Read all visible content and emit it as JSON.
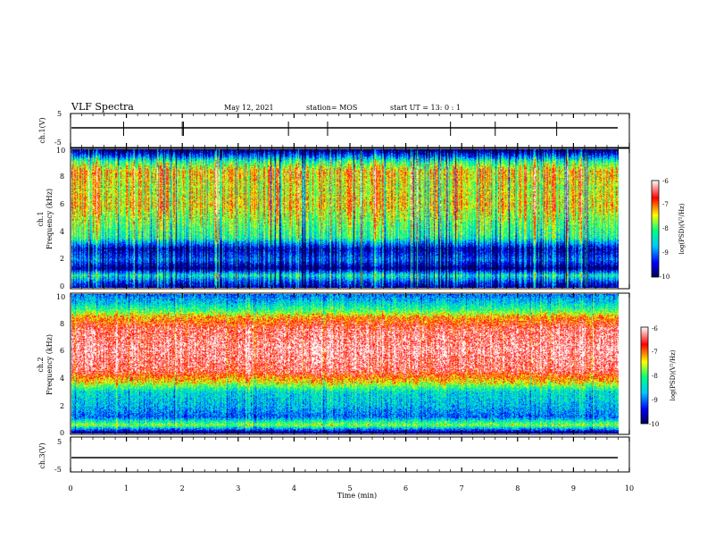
{
  "header": {
    "title": "VLF Spectra",
    "date": "May 12, 2021",
    "station": "station= MOS",
    "start": "start  UT  =   13: 0   : 1"
  },
  "chart_data": [
    {
      "type": "line",
      "panel": "ch1-waveform",
      "ylabel": "ch.1(V)",
      "ylim": [
        -5,
        5
      ],
      "ytick_labels": [
        "5",
        "-5"
      ],
      "series": [
        {
          "x": [
            0,
            9.8
          ],
          "values": [
            0,
            0
          ]
        }
      ]
    },
    {
      "type": "heatmap",
      "panel": "ch1-spectrogram",
      "ylabel_top": "ch.1",
      "ylabel": "Frequency (kHz)",
      "ylim": [
        0,
        10
      ],
      "ytick_labels": [
        "0",
        "2",
        "4",
        "6",
        "8",
        "10"
      ],
      "data_xlim": [
        0,
        9.8
      ],
      "colorbar": {
        "label": "log(PSD)(V²/Hz)",
        "range": [
          -10,
          -6
        ],
        "tick_labels": [
          "-6",
          "-7",
          "-8",
          "-9",
          "-10"
        ]
      },
      "spectrum_profile": [
        {
          "freq_khz": 0.1,
          "level": -9.6
        },
        {
          "freq_khz": 0.4,
          "level": -9.2
        },
        {
          "freq_khz": 0.9,
          "level": -8.2
        },
        {
          "freq_khz": 1.4,
          "level": -9.9
        },
        {
          "freq_khz": 2.0,
          "level": -9.0
        },
        {
          "freq_khz": 2.8,
          "level": -9.6
        },
        {
          "freq_khz": 3.6,
          "level": -8.1
        },
        {
          "freq_khz": 4.5,
          "level": -7.8
        },
        {
          "freq_khz": 6.0,
          "level": -7.2
        },
        {
          "freq_khz": 7.2,
          "level": -7.4
        },
        {
          "freq_khz": 8.4,
          "level": -7.1
        },
        {
          "freq_khz": 9.1,
          "level": -8.0
        },
        {
          "freq_khz": 9.5,
          "level": -9.0
        },
        {
          "freq_khz": 9.9,
          "level": -9.9
        }
      ]
    },
    {
      "type": "heatmap",
      "panel": "ch2-spectrogram",
      "ylabel_top": "ch.2",
      "ylabel": "Frequency (kHz)",
      "ylim": [
        0,
        10
      ],
      "ytick_labels": [
        "0",
        "2",
        "4",
        "6",
        "8",
        "10"
      ],
      "data_xlim": [
        0,
        9.8
      ],
      "colorbar": {
        "label": "log(PSD)(V²/Hz)",
        "range": [
          -10,
          -6
        ],
        "tick_labels": [
          "-6",
          "-7",
          "-8",
          "-9",
          "-10"
        ]
      },
      "spectrum_profile": [
        {
          "freq_khz": 0.1,
          "level": -9.8
        },
        {
          "freq_khz": 0.6,
          "level": -7.6
        },
        {
          "freq_khz": 1.2,
          "level": -9.0
        },
        {
          "freq_khz": 2.0,
          "level": -8.6
        },
        {
          "freq_khz": 3.0,
          "level": -8.4
        },
        {
          "freq_khz": 3.6,
          "level": -7.4
        },
        {
          "freq_khz": 4.5,
          "level": -6.4
        },
        {
          "freq_khz": 6.0,
          "level": -6.2
        },
        {
          "freq_khz": 7.5,
          "level": -6.4
        },
        {
          "freq_khz": 8.3,
          "level": -7.0
        },
        {
          "freq_khz": 8.9,
          "level": -8.0
        },
        {
          "freq_khz": 9.4,
          "level": -8.5
        },
        {
          "freq_khz": 9.9,
          "level": -8.9
        }
      ]
    },
    {
      "type": "line",
      "panel": "ch3-waveform",
      "ylabel": "ch.3(V)",
      "ylim": [
        -5,
        5
      ],
      "ytick_labels": [
        "5",
        "-5"
      ],
      "series": [
        {
          "x": [
            0,
            9.8
          ],
          "values": [
            0,
            0
          ]
        }
      ]
    }
  ],
  "xaxis": {
    "label": "Time  (min)",
    "xlim": [
      0,
      10
    ],
    "tick_labels": [
      "0",
      "1",
      "2",
      "3",
      "4",
      "5",
      "6",
      "7",
      "8",
      "9",
      "10"
    ]
  },
  "colors": {
    "colormap": [
      "#000050",
      "#0000ff",
      "#00c8ff",
      "#00ff80",
      "#ffff00",
      "#ff0000",
      "#ffffff"
    ]
  }
}
